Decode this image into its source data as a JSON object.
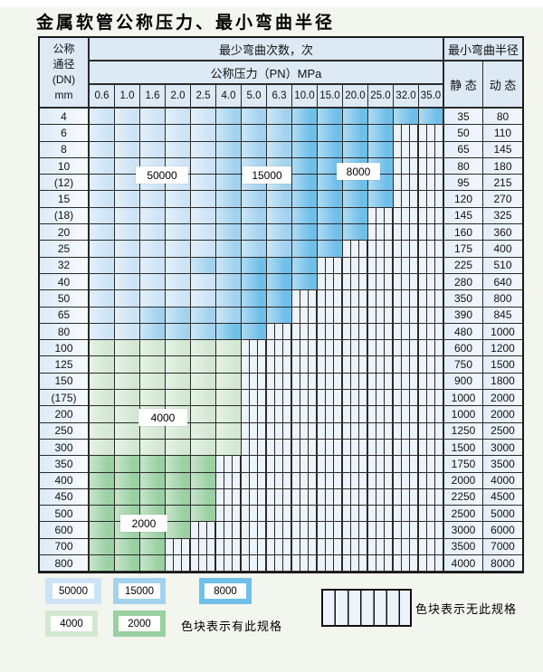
{
  "title": "金属软管公称压力、最小弯曲半径",
  "table": {
    "header": {
      "dn_lines": [
        "公称",
        "通径",
        "(DN)",
        "mm"
      ],
      "bend_cycles": "最少弯曲次数，次",
      "pressure": "公称压力（PN）MPa",
      "bend_radius": "最小弯曲半径",
      "static_label": "静 态",
      "dynamic_label": "动 态",
      "pressures": [
        "0.6",
        "1.0",
        "1.6",
        "2.0",
        "2.5",
        "4.0",
        "5.0",
        "6.3",
        "10.0",
        "15.0",
        "20.0",
        "25.0",
        "32.0",
        "35.0"
      ]
    },
    "zone_legend_note": "L=50000 light blue, M=15000 medium blue, D=8000 dark blue, G=4000 light green, g=2000 dark green, X=no spec (hatched)",
    "rows": [
      {
        "dn": "4",
        "zones": "LLLLLMMMDDDDDD",
        "static": "35",
        "dynamic": "80"
      },
      {
        "dn": "6",
        "zones": "LLLLLMMMDDDDXX",
        "static": "50",
        "dynamic": "110"
      },
      {
        "dn": "8",
        "zones": "LLLLLMMMDDDDXX",
        "static": "65",
        "dynamic": "145"
      },
      {
        "dn": "10",
        "zones": "LLLLLMMMDDDDXX",
        "static": "80",
        "dynamic": "180"
      },
      {
        "dn": "(12)",
        "zones": "LLLLLMMMDDDDXX",
        "static": "95",
        "dynamic": "215"
      },
      {
        "dn": "15",
        "zones": "LLLLLMMMDDDDXX",
        "static": "120",
        "dynamic": "270"
      },
      {
        "dn": "(18)",
        "zones": "LLLLLMMMDDDXXX",
        "static": "145",
        "dynamic": "325"
      },
      {
        "dn": "20",
        "zones": "LLLLLMMMDDDXXX",
        "static": "160",
        "dynamic": "360"
      },
      {
        "dn": "25",
        "zones": "LLLLLMMMDDXXXX",
        "static": "175",
        "dynamic": "400"
      },
      {
        "dn": "32",
        "zones": "LLLLMMDDDXXXXX",
        "static": "225",
        "dynamic": "510"
      },
      {
        "dn": "40",
        "zones": "LLLLLMDDDXXXXX",
        "static": "280",
        "dynamic": "640"
      },
      {
        "dn": "50",
        "zones": "LLLLLMDDXXXXXX",
        "static": "350",
        "dynamic": "800"
      },
      {
        "dn": "65",
        "zones": "LLMMMMDDXXXXXX",
        "static": "390",
        "dynamic": "845"
      },
      {
        "dn": "80",
        "zones": "LLMMMDDXXXXXXX",
        "static": "480",
        "dynamic": "1000"
      },
      {
        "dn": "100",
        "zones": "GGGGGGXXXXXXXX",
        "static": "600",
        "dynamic": "1200"
      },
      {
        "dn": "125",
        "zones": "GGGGGGXXXXXXXX",
        "static": "750",
        "dynamic": "1500"
      },
      {
        "dn": "150",
        "zones": "GGGGGGXXXXXXXX",
        "static": "900",
        "dynamic": "1800"
      },
      {
        "dn": "(175)",
        "zones": "GGGGGGXXXXXXXX",
        "static": "1000",
        "dynamic": "2000"
      },
      {
        "dn": "200",
        "zones": "GGGGGGXXXXXXXX",
        "static": "1000",
        "dynamic": "2000"
      },
      {
        "dn": "250",
        "zones": "GGGGGGXXXXXXXX",
        "static": "1250",
        "dynamic": "2500"
      },
      {
        "dn": "300",
        "zones": "GGGGGGXXXXXXXX",
        "static": "1500",
        "dynamic": "3000"
      },
      {
        "dn": "350",
        "zones": "gggggXXXXXXXXX",
        "static": "1750",
        "dynamic": "3500"
      },
      {
        "dn": "400",
        "zones": "gggggXXXXXXXXX",
        "static": "2000",
        "dynamic": "4000"
      },
      {
        "dn": "450",
        "zones": "gggggXXXXXXXXX",
        "static": "2250",
        "dynamic": "4500"
      },
      {
        "dn": "500",
        "zones": "gggggXXXXXXXXX",
        "static": "2500",
        "dynamic": "5000"
      },
      {
        "dn": "600",
        "zones": "ggggXXXXXXXXXX",
        "static": "3000",
        "dynamic": "6000"
      },
      {
        "dn": "700",
        "zones": "gggXXXXXXXXXXX",
        "static": "3500",
        "dynamic": "7000"
      },
      {
        "dn": "800",
        "zones": "gggXXXXXXXXXXX",
        "static": "4000",
        "dynamic": "8000"
      }
    ],
    "overlay_labels": [
      {
        "text": "50000"
      },
      {
        "text": "15000"
      },
      {
        "text": "8000"
      },
      {
        "text": "4000"
      },
      {
        "text": "2000"
      }
    ]
  },
  "legend": {
    "items": [
      {
        "label": "50000",
        "color_key": "light_blue"
      },
      {
        "label": "15000",
        "color_key": "medium_blue"
      },
      {
        "label": "8000",
        "color_key": "dark_blue"
      },
      {
        "label": "4000",
        "color_key": "light_green"
      },
      {
        "label": "2000",
        "color_key": "dark_green"
      }
    ],
    "has_spec_text": "色块表示有此规格",
    "no_spec_text": "色块表示无此规格"
  },
  "colors": {
    "light_blue": "#cde4f6",
    "medium_blue": "#a3d2ef",
    "dark_blue": "#6fbfe9",
    "light_green": "#d3e8d2",
    "dark_green": "#9ad0a2",
    "header_bg": "#dde9f5",
    "hatch_bg": "#edf3fa",
    "page_bg": "#f3f6ee"
  }
}
